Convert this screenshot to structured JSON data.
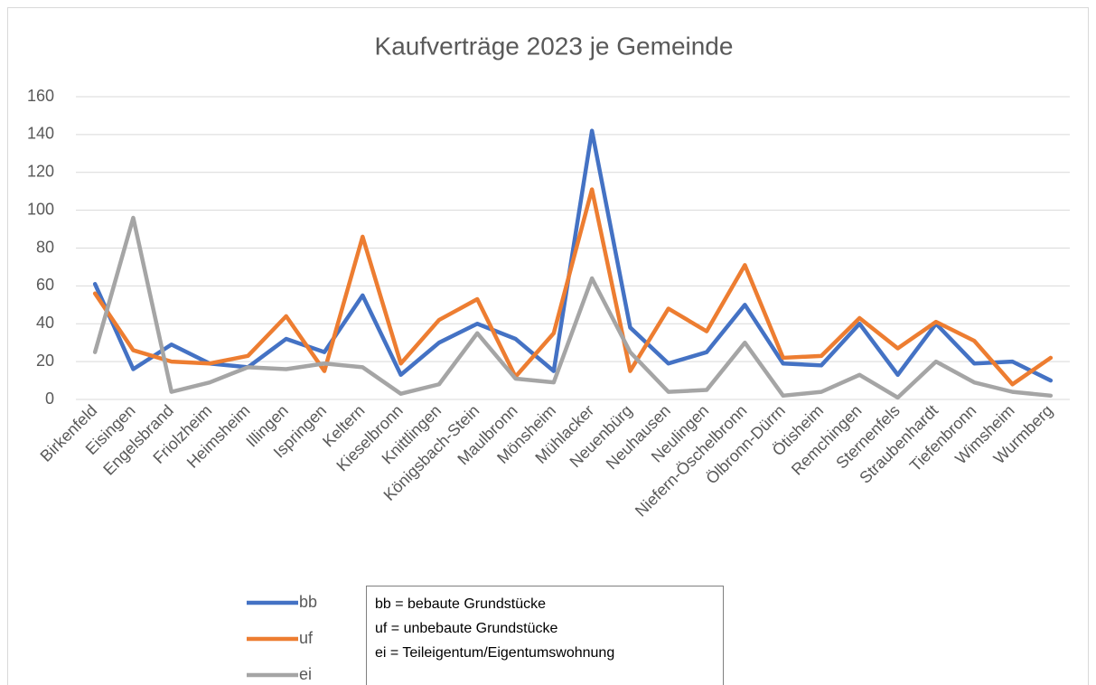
{
  "chart_data": {
    "type": "line",
    "title": "Kaufverträge 2023 je Gemeinde",
    "categories": [
      "Birkenfeld",
      "Eisingen",
      "Engelsbrand",
      "Friolzheim",
      "Heimsheim",
      "Illingen",
      "Ispringen",
      "Keltern",
      "Kieselbronn",
      "Knittlingen",
      "Königsbach-Stein",
      "Maulbronn",
      "Mönsheim",
      "Mühlacker",
      "Neuenbürg",
      "Neuhausen",
      "Neulingen",
      "Niefern-Öschelbronn",
      "Ölbronn-Dürrn",
      "Ötisheim",
      "Remchingen",
      "Sternenfels",
      "Straubenhardt",
      "Tiefenbronn",
      "Wimsheim",
      "Wurmberg"
    ],
    "series": [
      {
        "name": "bb",
        "color": "#4472c4",
        "values": [
          61,
          16,
          29,
          19,
          17,
          32,
          25,
          55,
          13,
          30,
          40,
          32,
          15,
          142,
          38,
          19,
          25,
          50,
          19,
          18,
          40,
          13,
          40,
          19,
          20,
          10
        ]
      },
      {
        "name": "uf",
        "color": "#ed7d31",
        "values": [
          56,
          26,
          20,
          19,
          23,
          44,
          15,
          86,
          19,
          42,
          53,
          12,
          35,
          111,
          15,
          48,
          36,
          71,
          22,
          23,
          43,
          27,
          41,
          31,
          8,
          22
        ]
      },
      {
        "name": "ei",
        "color": "#a5a5a5",
        "values": [
          25,
          96,
          4,
          9,
          17,
          16,
          19,
          17,
          3,
          8,
          35,
          11,
          9,
          64,
          25,
          4,
          5,
          30,
          2,
          4,
          13,
          1,
          20,
          9,
          4,
          2
        ]
      }
    ],
    "ylim": [
      0,
      160
    ],
    "yticks": [
      0,
      20,
      40,
      60,
      80,
      100,
      120,
      140,
      160
    ],
    "grid": true,
    "legend": "bottom-left",
    "annotation": [
      "bb = bebaute Grundstücke",
      "uf = unbebaute Grundstücke",
      "ei = Teileigentum/Eigentumswohnung"
    ]
  }
}
